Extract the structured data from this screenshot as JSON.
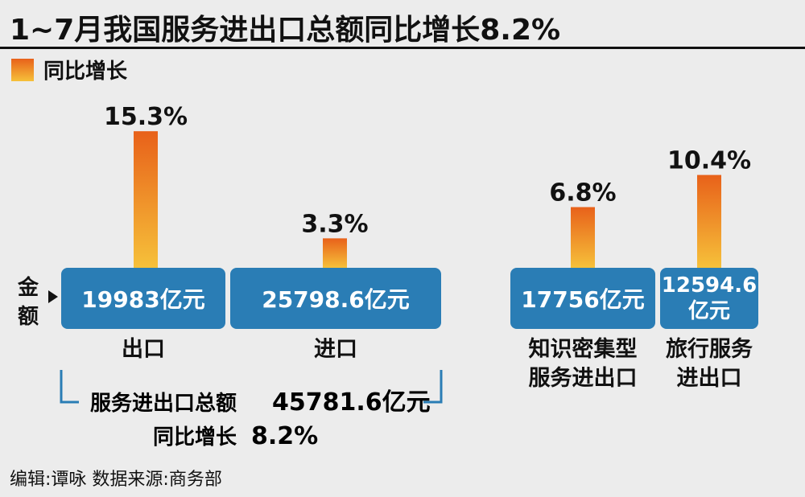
{
  "title": "1~7月我国服务进出口总额同比增长8.2%",
  "legend": {
    "label": "同比增长",
    "color_top": "#e8611a",
    "color_bottom": "#f6c13a"
  },
  "amount_label": "金额",
  "box_color": "#2a7db5",
  "chart_data": {
    "type": "bar",
    "title": "1~7月我国服务进出口总额同比增长8.2%",
    "series": [
      {
        "name": "同比增长",
        "values": [
          15.3,
          3.3,
          6.8,
          10.4
        ]
      }
    ],
    "categories": [
      {
        "label_lines": [
          "出口"
        ],
        "amount_lines": [
          "19983亿元"
        ],
        "growth_label": "15.3%"
      },
      {
        "label_lines": [
          "进口"
        ],
        "amount_lines": [
          "25798.6亿元"
        ],
        "growth_label": "3.3%"
      },
      {
        "label_lines": [
          "知识密集型",
          "服务进出口"
        ],
        "amount_lines": [
          "17756亿元"
        ],
        "growth_label": "6.8%"
      },
      {
        "label_lines": [
          "旅行服务",
          "进出口"
        ],
        "amount_lines": [
          "12594.6",
          "亿元"
        ],
        "growth_label": "10.4%"
      }
    ],
    "unit": "%"
  },
  "summary": {
    "total_label": "服务进出口总额",
    "total_value": "45781.6亿元",
    "growth_label": "同比增长",
    "growth_value": "8.2%"
  },
  "footer": "编辑:谭咏  数据来源:商务部"
}
